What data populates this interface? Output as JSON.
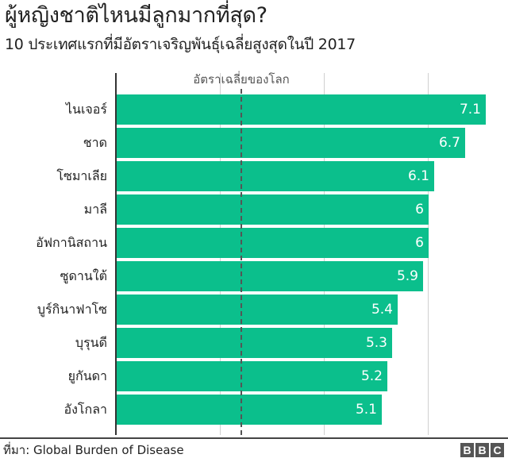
{
  "header": {
    "title": "ผู้หญิงชาติไหนมีลูกมากที่สุด?",
    "subtitle": "10 ประเทศแรกที่มีอัตราเจริญพันธุ์เฉลี่ยสูงสุดในปี 2017"
  },
  "annotation": {
    "label": "อัตราเฉลี่ยของโลก",
    "value": 2.4
  },
  "footer": {
    "source": "ที่มา: Global Burden of Disease",
    "logo_letters": [
      "B",
      "B",
      "C"
    ]
  },
  "colors": {
    "bar": "#0bbf8c",
    "text": "#222222",
    "annotation": "#555555",
    "gridline": "#d0d0d0"
  },
  "chart_data": {
    "type": "bar",
    "orientation": "horizontal",
    "title": "ผู้หญิงชาติไหนมีลูกมากที่สุด?",
    "subtitle": "10 ประเทศแรกที่มีอัตราเจริญพันธุ์เฉลี่ยสูงสุดในปี 2017",
    "categories": [
      "ไนเจอร์",
      "ชาด",
      "โซมาเลีย",
      "มาลี",
      "อัฟกานิสถาน",
      "ซูดานใต้",
      "บูร์กินาฟาโซ",
      "บุรุนดี",
      "ยูกันดา",
      "อังโกลา"
    ],
    "values": [
      7.1,
      6.7,
      6.1,
      6,
      6,
      5.9,
      5.4,
      5.3,
      5.2,
      5.1
    ],
    "value_labels": [
      "7.1",
      "6.7",
      "6.1",
      "6",
      "6",
      "5.9",
      "5.4",
      "5.3",
      "5.2",
      "5.1"
    ],
    "xlabel": "",
    "ylabel": "",
    "xlim": [
      0,
      7.3
    ],
    "gridlines_x": [
      0,
      2,
      4,
      6
    ],
    "grid": true,
    "reference_line": {
      "label": "อัตราเฉลี่ยของโลก",
      "value": 2.4,
      "style": "dashed"
    },
    "legend": null,
    "source": "ที่มา: Global Burden of Disease"
  }
}
